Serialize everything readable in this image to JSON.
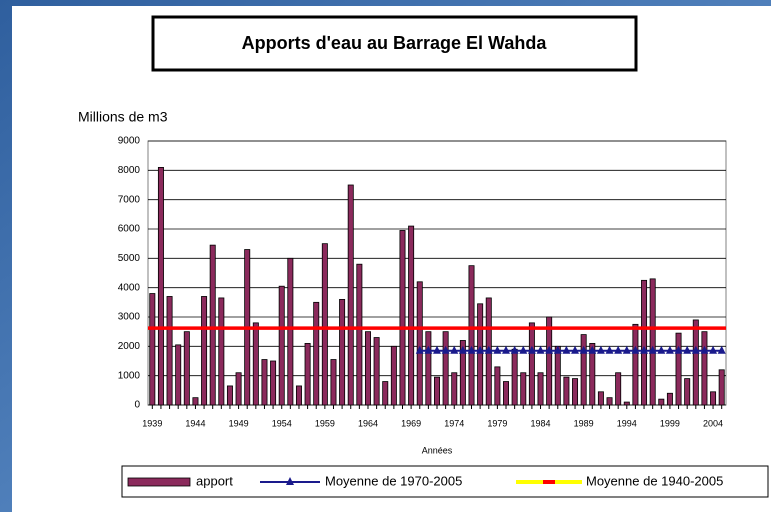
{
  "chart_data": {
    "type": "bar",
    "title": "Apports d'eau au Barrage El Wahda",
    "y_label": "Millions de m3",
    "x_label": "Années",
    "categories": [
      "1939",
      null,
      null,
      null,
      null,
      "1944",
      null,
      null,
      null,
      null,
      "1949",
      null,
      null,
      null,
      null,
      "1954",
      null,
      null,
      null,
      null,
      "1959",
      null,
      null,
      null,
      null,
      "1964",
      null,
      null,
      null,
      null,
      "1969",
      null,
      null,
      null,
      null,
      "1974",
      null,
      null,
      null,
      null,
      "1979",
      null,
      null,
      null,
      null,
      "1984",
      null,
      null,
      null,
      null,
      "1989",
      null,
      null,
      null,
      null,
      "1994",
      null,
      null,
      null,
      null,
      "1999",
      null,
      null,
      null,
      null,
      "2004",
      null
    ],
    "series": [
      {
        "name": "apport",
        "type": "bar",
        "color": "#8b2a5c",
        "values": [
          3800,
          8100,
          3700,
          2050,
          2500,
          250,
          3700,
          5450,
          3650,
          650,
          1100,
          5300,
          2800,
          1550,
          1500,
          4050,
          5000,
          650,
          2100,
          3500,
          5500,
          1550,
          3600,
          7500,
          4800,
          2500,
          2300,
          800,
          2000,
          5950,
          6100,
          4200,
          2500,
          950,
          2500,
          1100,
          2200,
          4750,
          3450,
          3650,
          1300,
          800,
          1900,
          1100,
          2800,
          1100,
          3000,
          2000,
          950,
          900,
          2400,
          2100,
          450,
          250,
          1100,
          100,
          2750,
          4250,
          4300,
          200,
          400,
          2450,
          900,
          2900,
          2500,
          450,
          1200
        ]
      },
      {
        "name": "Moyenne de 1970-2005",
        "type": "line",
        "color": "#1a1a8c",
        "marker": "triangle",
        "values": [
          null,
          null,
          null,
          null,
          null,
          null,
          null,
          null,
          null,
          null,
          null,
          null,
          null,
          null,
          null,
          null,
          null,
          null,
          null,
          null,
          null,
          null,
          null,
          null,
          null,
          null,
          null,
          null,
          null,
          null,
          null,
          1850,
          1850,
          1850,
          1850,
          1850,
          1850,
          1850,
          1850,
          1850,
          1850,
          1850,
          1850,
          1850,
          1850,
          1850,
          1850,
          1850,
          1850,
          1850,
          1850,
          1850,
          1850,
          1850,
          1850,
          1850,
          1850,
          1850,
          1850,
          1850,
          1850,
          1850,
          1850,
          1850,
          1850,
          1850,
          1850
        ]
      },
      {
        "name": "Moyenne de 1940-2005",
        "type": "line",
        "color": "#ff0000",
        "values": [
          2620,
          2620,
          2620,
          2620,
          2620,
          2620,
          2620,
          2620,
          2620,
          2620,
          2620,
          2620,
          2620,
          2620,
          2620,
          2620,
          2620,
          2620,
          2620,
          2620,
          2620,
          2620,
          2620,
          2620,
          2620,
          2620,
          2620,
          2620,
          2620,
          2620,
          2620,
          2620,
          2620,
          2620,
          2620,
          2620,
          2620,
          2620,
          2620,
          2620,
          2620,
          2620,
          2620,
          2620,
          2620,
          2620,
          2620,
          2620,
          2620,
          2620,
          2620,
          2620,
          2620,
          2620,
          2620,
          2620,
          2620,
          2620,
          2620,
          2620,
          2620,
          2620,
          2620,
          2620,
          2620,
          2620,
          2620
        ]
      }
    ],
    "ylim": [
      0,
      9000
    ],
    "yticks": [
      0,
      1000,
      2000,
      3000,
      4000,
      5000,
      6000,
      7000,
      8000,
      9000
    ],
    "grid": true,
    "legend": "bottom"
  }
}
